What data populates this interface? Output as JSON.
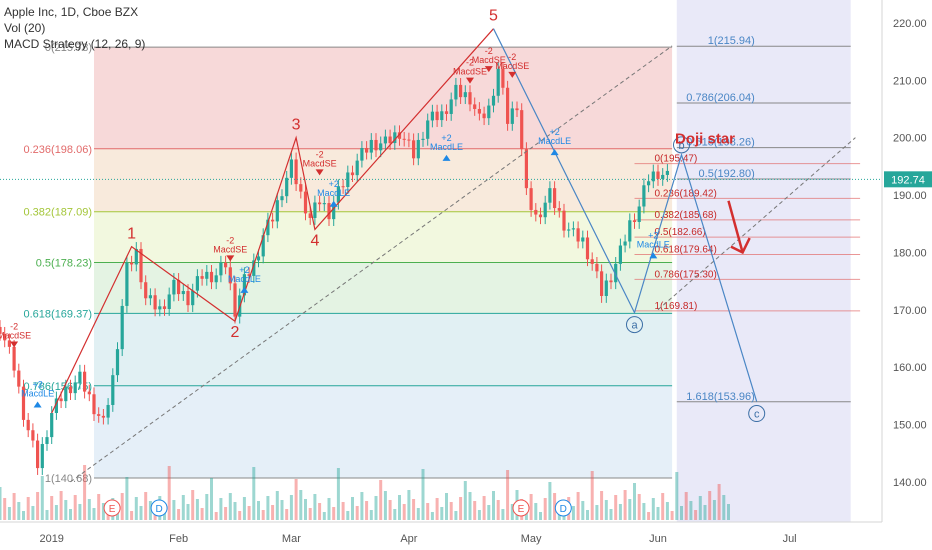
{
  "legend": {
    "symbol": "Apple Inc, 1D, Cboe BZX",
    "volume": "Vol (20)",
    "strategy": "MACD Strategy (12, 26, 9)"
  },
  "price_tag": "192.74",
  "colors": {
    "up": "#26a69a",
    "down": "#ef5350",
    "wave": "#d32f2f",
    "projection": "#4a86c5",
    "fib_red": "#e26b6b",
    "fib_green": "#4caf50",
    "fib_teal": "#26a69a",
    "fib_gray": "#888888",
    "time_zone": "#7b7bd8"
  },
  "chart_data": {
    "type": "candlestick",
    "title": "Apple Inc, 1D, Cboe BZX",
    "x_ticks": [
      "2019",
      "Feb",
      "Mar",
      "Apr",
      "May",
      "Jun",
      "Jul"
    ],
    "y_ticks": [
      140,
      150,
      160,
      170,
      180,
      190,
      200,
      210,
      220
    ],
    "ylim": [
      133,
      224
    ],
    "last_price": 192.74,
    "close_path": [
      [
        0,
        167
      ],
      [
        3,
        160
      ],
      [
        5,
        152
      ],
      [
        8,
        143
      ],
      [
        11,
        152
      ],
      [
        14,
        156
      ],
      [
        17,
        158
      ],
      [
        20,
        153
      ],
      [
        22,
        150
      ],
      [
        24,
        158
      ],
      [
        27,
        177
      ],
      [
        29,
        180
      ],
      [
        31,
        172
      ],
      [
        34,
        170
      ],
      [
        37,
        174
      ],
      [
        40,
        172
      ],
      [
        43,
        176
      ],
      [
        46,
        176
      ],
      [
        48,
        178
      ],
      [
        50,
        170
      ],
      [
        52,
        175
      ],
      [
        54,
        178
      ],
      [
        56,
        183
      ],
      [
        58,
        186
      ],
      [
        60,
        191
      ],
      [
        62,
        195
      ],
      [
        64,
        190
      ],
      [
        66,
        186
      ],
      [
        68,
        189
      ],
      [
        70,
        187
      ],
      [
        73,
        192
      ],
      [
        76,
        196
      ],
      [
        79,
        199
      ],
      [
        82,
        199
      ],
      [
        85,
        201
      ],
      [
        88,
        197
      ],
      [
        91,
        203
      ],
      [
        94,
        204
      ],
      [
        97,
        208
      ],
      [
        100,
        207
      ],
      [
        102,
        203
      ],
      [
        104,
        205
      ],
      [
        106,
        212
      ],
      [
        108,
        203
      ],
      [
        110,
        206
      ],
      [
        112,
        190
      ],
      [
        114,
        186
      ],
      [
        117,
        190
      ],
      [
        120,
        185
      ],
      [
        122,
        183
      ],
      [
        124,
        182
      ],
      [
        126,
        178
      ],
      [
        128,
        173
      ],
      [
        130,
        176
      ],
      [
        132,
        180
      ],
      [
        134,
        185
      ],
      [
        136,
        188
      ],
      [
        138,
        193
      ],
      [
        140,
        194
      ],
      [
        142,
        193
      ]
    ],
    "fib_retracement_left": [
      {
        "label": "0(215.78)",
        "value": 215.78
      },
      {
        "label": "0.236(198.06)",
        "value": 198.06
      },
      {
        "label": "0.382(187.09)",
        "value": 187.09
      },
      {
        "label": "0.5(178.23)",
        "value": 178.23
      },
      {
        "label": "0.618(169.37)",
        "value": 169.37
      },
      {
        "label": "0.786(156.75)",
        "value": 156.75
      },
      {
        "label": "1(140.68)",
        "value": 140.68
      }
    ],
    "fib_extension_right": [
      {
        "label": "1(215.94)",
        "value": 215.94
      },
      {
        "label": "0.786(206.04)",
        "value": 206.04
      },
      {
        "label": "0.618(198.26)",
        "value": 198.26
      },
      {
        "label": "0.5(192.80)",
        "value": 192.8
      },
      {
        "label": "1.618(153.96)",
        "value": 153.96
      }
    ],
    "fib_retracement_small": [
      {
        "label": "0(195.47)",
        "value": 195.47
      },
      {
        "label": "0.236(189.42)",
        "value": 189.42
      },
      {
        "label": "0.382(185.68)",
        "value": 185.68
      },
      {
        "label": "0.5(182.66)",
        "value": 182.66
      },
      {
        "label": "0.618(179.64)",
        "value": 179.64
      },
      {
        "label": "0.786(175.30)",
        "value": 175.3
      },
      {
        "label": "1(169.81)",
        "value": 169.81
      }
    ],
    "elliott_primary": [
      {
        "label": "1",
        "x": 28,
        "y": 181
      },
      {
        "label": "2",
        "x": 50,
        "y": 168
      },
      {
        "label": "3",
        "x": 63,
        "y": 200
      },
      {
        "label": "4",
        "x": 67,
        "y": 184
      },
      {
        "label": "5",
        "x": 105,
        "y": 219
      }
    ],
    "elliott_abc": [
      {
        "label": "a",
        "x": 135,
        "y": 169.5
      },
      {
        "label": "b",
        "x": 145,
        "y": 197
      },
      {
        "label": "c",
        "x": 161,
        "y": 154
      }
    ],
    "annotations": {
      "doji": "Doji star",
      "macd_short": "MacdSE",
      "macd_long": "MacdLE",
      "minus_two": "-2",
      "plus_two": "+2",
      "earnings": "E",
      "dividend": "D"
    },
    "volume_label": "Vol (20)"
  }
}
